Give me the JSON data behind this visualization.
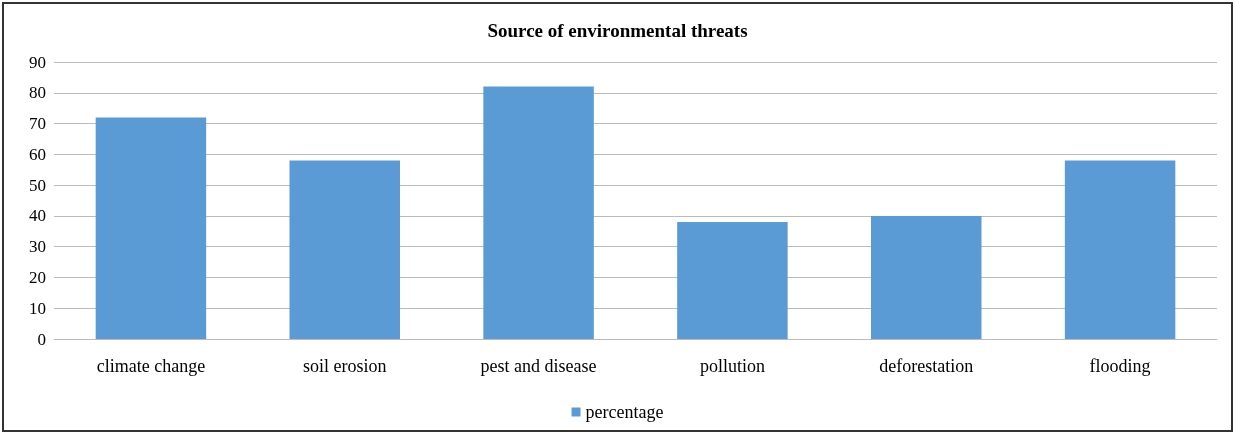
{
  "chart_data": {
    "type": "bar",
    "title": "Source of environmental threats",
    "categories": [
      "climate change",
      "soil erosion",
      "pest and disease",
      "pollution",
      "deforestation",
      "flooding"
    ],
    "series": [
      {
        "name": "percentage",
        "color": "#5b9bd5",
        "values": [
          72,
          58,
          82,
          38,
          40,
          58
        ]
      }
    ],
    "ylim": [
      0,
      90
    ],
    "yticks": [
      0,
      10,
      20,
      30,
      40,
      50,
      60,
      70,
      80,
      90
    ],
    "grid": "y",
    "legend": "bottom"
  }
}
